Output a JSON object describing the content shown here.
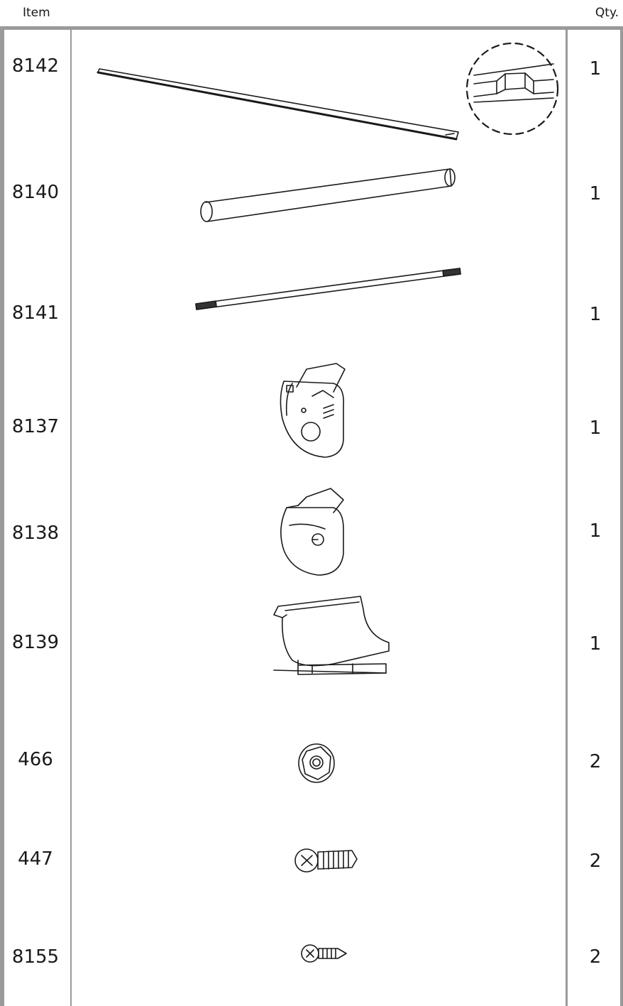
{
  "header": {
    "item_label": "Item",
    "qty_label": "Qty."
  },
  "rows": [
    {
      "item": "8142",
      "qty": "1"
    },
    {
      "item": "8140",
      "qty": "1"
    },
    {
      "item": "8141",
      "qty": "1"
    },
    {
      "item": "8137",
      "qty": "1"
    },
    {
      "item": "8138",
      "qty": "1"
    },
    {
      "item": "8139",
      "qty": "1"
    },
    {
      "item": "466",
      "qty": "2"
    },
    {
      "item": "447",
      "qty": "2"
    },
    {
      "item": "8155",
      "qty": "2"
    }
  ]
}
